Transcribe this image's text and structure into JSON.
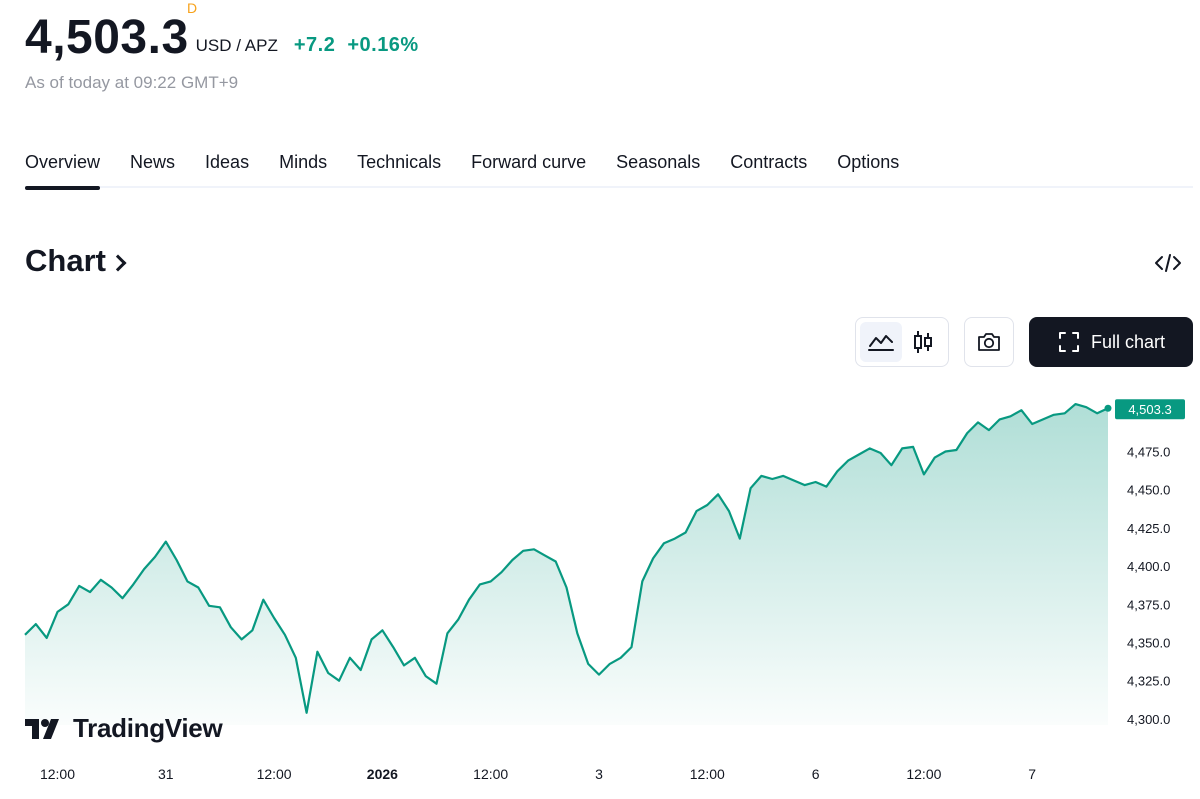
{
  "quote": {
    "price": "4,503.3",
    "badge": "D",
    "unit": "USD / APZ",
    "change": "+7.2",
    "change_pct": "+0.16%",
    "as_of": "As of today at 09:22 GMT+9"
  },
  "tabs": [
    "Overview",
    "News",
    "Ideas",
    "Minds",
    "Technicals",
    "Forward curve",
    "Seasonals",
    "Contracts",
    "Options"
  ],
  "section": {
    "title": "Chart"
  },
  "toolbar": {
    "full_chart_label": "Full chart"
  },
  "brand": {
    "name": "TradingView"
  },
  "colors": {
    "accent": "#089981",
    "dark": "#131722",
    "badge": "#f7a21b"
  },
  "chart_data": {
    "type": "area",
    "y_ticks": [
      "4,300.0",
      "4,325.0",
      "4,350.0",
      "4,375.0",
      "4,400.0",
      "4,425.0",
      "4,450.0",
      "4,475.0"
    ],
    "ylim": [
      4296,
      4510
    ],
    "x_ticks": [
      "12:00",
      "31",
      "12:00",
      "2026",
      "12:00",
      "3",
      "12:00",
      "6",
      "12:00",
      "7"
    ],
    "x_tick_pos": [
      1.5,
      6.5,
      11.5,
      16.5,
      21.5,
      26.5,
      31.5,
      36.5,
      41.5,
      46.5
    ],
    "xlim": [
      0,
      50
    ],
    "last_price_label": "4,503.3",
    "last_value": 4503.3,
    "series": [
      {
        "x": [
          0,
          0.5,
          1,
          1.5,
          2,
          2.5,
          3,
          3.5,
          4,
          4.5,
          5,
          5.5,
          6,
          6.5,
          7,
          7.5,
          8,
          8.5,
          9,
          9.5,
          10,
          10.5,
          11,
          11.5,
          12,
          12.5,
          13,
          13.5,
          14,
          14.5,
          15,
          15.5,
          16,
          16.5,
          17,
          17.5,
          18,
          18.5,
          19,
          19.5,
          20,
          20.5,
          21,
          21.5,
          22,
          22.5,
          23,
          23.5,
          24,
          24.5,
          25,
          25.5,
          26,
          26.5,
          27,
          27.5,
          28,
          28.5,
          29,
          29.5,
          30,
          30.5,
          31,
          31.5,
          32,
          32.5,
          33,
          33.5,
          34,
          34.5,
          35,
          35.5,
          36,
          36.5,
          37,
          37.5,
          38,
          38.5,
          39,
          39.5,
          40,
          40.5,
          41,
          41.5,
          42,
          42.5,
          43,
          43.5,
          44,
          44.5,
          45,
          45.5,
          46,
          46.5,
          47,
          47.5,
          48,
          48.5,
          49,
          49.5,
          50
        ],
        "y": [
          4355,
          4362,
          4353,
          4370,
          4375,
          4387,
          4383,
          4391,
          4386,
          4379,
          4388,
          4398,
          4406,
          4416,
          4404,
          4390,
          4386,
          4374,
          4373,
          4360,
          4352,
          4358,
          4378,
          4366,
          4355,
          4340,
          4304,
          4344,
          4330,
          4325,
          4340,
          4332,
          4352,
          4358,
          4347,
          4335,
          4340,
          4328,
          4323,
          4356,
          4365,
          4378,
          4388,
          4390,
          4396,
          4404,
          4410,
          4411,
          4407,
          4403,
          4386,
          4356,
          4336,
          4329,
          4336,
          4340,
          4347,
          4390,
          4405,
          4415,
          4418,
          4422,
          4436,
          4440,
          4447,
          4436,
          4418,
          4451,
          4459,
          4457,
          4459,
          4456,
          4453,
          4455,
          4452,
          4462,
          4469,
          4473,
          4477,
          4474,
          4466,
          4477,
          4478,
          4460,
          4471,
          4475,
          4476,
          4487,
          4494,
          4489,
          4496,
          4498,
          4502,
          4493,
          4496,
          4499,
          4500,
          4506,
          4504,
          4500,
          4503.3
        ]
      }
    ]
  }
}
